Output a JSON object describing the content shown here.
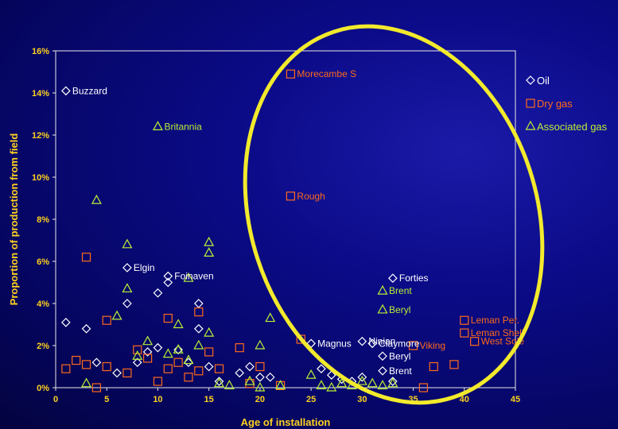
{
  "chart_data": {
    "type": "scatter",
    "xlabel": "Age of installation",
    "ylabel": "Proportion of production from field",
    "xlim": [
      0,
      45
    ],
    "ylim": [
      0,
      16
    ],
    "x_ticks": [
      "0",
      "5",
      "10",
      "15",
      "20",
      "25",
      "30",
      "35",
      "40",
      "45"
    ],
    "y_ticks": [
      "0%",
      "2%",
      "4%",
      "6%",
      "8%",
      "10%",
      "12%",
      "14%",
      "16%"
    ],
    "grid": false,
    "legend_position": "right",
    "highlight": "yellow ellipse around fields of age 22-46",
    "series": [
      {
        "name": "Oil",
        "marker": "diamond",
        "color": "#ffffff",
        "label_color": "#ffffff",
        "points": [
          {
            "x": 1,
            "y": 14.1,
            "label": "Buzzard"
          },
          {
            "x": 1,
            "y": 3.1
          },
          {
            "x": 3,
            "y": 2.8
          },
          {
            "x": 4,
            "y": 1.2
          },
          {
            "x": 6,
            "y": 0.7
          },
          {
            "x": 7,
            "y": 4.0
          },
          {
            "x": 7,
            "y": 5.7,
            "label": "Elgin"
          },
          {
            "x": 8,
            "y": 1.2
          },
          {
            "x": 9,
            "y": 1.7
          },
          {
            "x": 10,
            "y": 4.5
          },
          {
            "x": 10,
            "y": 1.9
          },
          {
            "x": 11,
            "y": 5.0
          },
          {
            "x": 11,
            "y": 5.3,
            "label": "Foinaven"
          },
          {
            "x": 12,
            "y": 1.8
          },
          {
            "x": 13,
            "y": 1.2
          },
          {
            "x": 14,
            "y": 4.0
          },
          {
            "x": 14,
            "y": 2.8
          },
          {
            "x": 15,
            "y": 1.0
          },
          {
            "x": 16,
            "y": 0.3
          },
          {
            "x": 18,
            "y": 0.7
          },
          {
            "x": 19,
            "y": 1.0
          },
          {
            "x": 20,
            "y": 0.5
          },
          {
            "x": 21,
            "y": 0.5
          },
          {
            "x": 25,
            "y": 2.1,
            "label": "Magnus"
          },
          {
            "x": 26,
            "y": 0.9
          },
          {
            "x": 27,
            "y": 0.6
          },
          {
            "x": 28,
            "y": 0.4
          },
          {
            "x": 29,
            "y": 0.3
          },
          {
            "x": 30,
            "y": 0.5
          },
          {
            "x": 30,
            "y": 2.2,
            "label": "Ninian"
          },
          {
            "x": 31,
            "y": 2.1,
            "label": "Claymore"
          },
          {
            "x": 32,
            "y": 1.5,
            "label": "Beryl"
          },
          {
            "x": 32,
            "y": 0.8,
            "label": "Brent"
          },
          {
            "x": 33,
            "y": 5.2,
            "label": "Forties"
          },
          {
            "x": 33,
            "y": 0.3
          }
        ]
      },
      {
        "name": "Dry gas",
        "marker": "square",
        "color": "#ff6a1a",
        "label_color": "#ff6a1a",
        "points": [
          {
            "x": 23,
            "y": 14.9,
            "label": "Morecambe S"
          },
          {
            "x": 23,
            "y": 9.1,
            "label": "Rough"
          },
          {
            "x": 3,
            "y": 6.2
          },
          {
            "x": 5,
            "y": 3.2
          },
          {
            "x": 11,
            "y": 3.3
          },
          {
            "x": 14,
            "y": 3.6
          },
          {
            "x": 1,
            "y": 0.9
          },
          {
            "x": 2,
            "y": 1.3
          },
          {
            "x": 3,
            "y": 1.1
          },
          {
            "x": 4,
            "y": 0.0
          },
          {
            "x": 5,
            "y": 1.0
          },
          {
            "x": 7,
            "y": 0.7
          },
          {
            "x": 8,
            "y": 1.8
          },
          {
            "x": 9,
            "y": 1.4
          },
          {
            "x": 10,
            "y": 0.3
          },
          {
            "x": 11,
            "y": 0.9
          },
          {
            "x": 12,
            "y": 1.2
          },
          {
            "x": 13,
            "y": 0.5
          },
          {
            "x": 14,
            "y": 0.8
          },
          {
            "x": 15,
            "y": 1.7
          },
          {
            "x": 16,
            "y": 0.9
          },
          {
            "x": 18,
            "y": 1.9
          },
          {
            "x": 19,
            "y": 0.2
          },
          {
            "x": 20,
            "y": 1.0
          },
          {
            "x": 22,
            "y": 0.1
          },
          {
            "x": 24,
            "y": 2.3
          },
          {
            "x": 35,
            "y": 2.0,
            "label": "Viking"
          },
          {
            "x": 36,
            "y": 0.0
          },
          {
            "x": 37,
            "y": 1.0
          },
          {
            "x": 39,
            "y": 1.1
          },
          {
            "x": 40,
            "y": 3.2,
            "label": "Leman Per."
          },
          {
            "x": 40,
            "y": 2.6,
            "label": "Leman Shell"
          },
          {
            "x": 41,
            "y": 2.2,
            "label": "West Sole"
          }
        ]
      },
      {
        "name": "Associated gas",
        "marker": "triangle",
        "color": "#b8f034",
        "label_color": "#b8f034",
        "points": [
          {
            "x": 10,
            "y": 12.4,
            "label": "Britannia"
          },
          {
            "x": 4,
            "y": 8.9
          },
          {
            "x": 7,
            "y": 6.8
          },
          {
            "x": 15,
            "y": 6.9
          },
          {
            "x": 15,
            "y": 6.4
          },
          {
            "x": 13,
            "y": 5.2
          },
          {
            "x": 7,
            "y": 4.7
          },
          {
            "x": 6,
            "y": 3.4
          },
          {
            "x": 12,
            "y": 3.0
          },
          {
            "x": 21,
            "y": 3.3
          },
          {
            "x": 15,
            "y": 2.6
          },
          {
            "x": 20,
            "y": 2.0
          },
          {
            "x": 3,
            "y": 0.2
          },
          {
            "x": 8,
            "y": 1.5
          },
          {
            "x": 9,
            "y": 2.2
          },
          {
            "x": 11,
            "y": 1.6
          },
          {
            "x": 12,
            "y": 1.8
          },
          {
            "x": 13,
            "y": 1.3
          },
          {
            "x": 14,
            "y": 2.0
          },
          {
            "x": 16,
            "y": 0.2
          },
          {
            "x": 17,
            "y": 0.1
          },
          {
            "x": 19,
            "y": 0.3
          },
          {
            "x": 20,
            "y": 0.0
          },
          {
            "x": 22,
            "y": 0.1
          },
          {
            "x": 25,
            "y": 0.6
          },
          {
            "x": 26,
            "y": 0.1
          },
          {
            "x": 27,
            "y": 0.0
          },
          {
            "x": 28,
            "y": 0.2
          },
          {
            "x": 29,
            "y": 0.1
          },
          {
            "x": 30,
            "y": 0.3
          },
          {
            "x": 31,
            "y": 0.2
          },
          {
            "x": 32,
            "y": 4.6,
            "label": "Brent"
          },
          {
            "x": 32,
            "y": 3.7,
            "label": "Beryl"
          },
          {
            "x": 32,
            "y": 0.1
          },
          {
            "x": 33,
            "y": 0.2
          }
        ]
      }
    ]
  }
}
